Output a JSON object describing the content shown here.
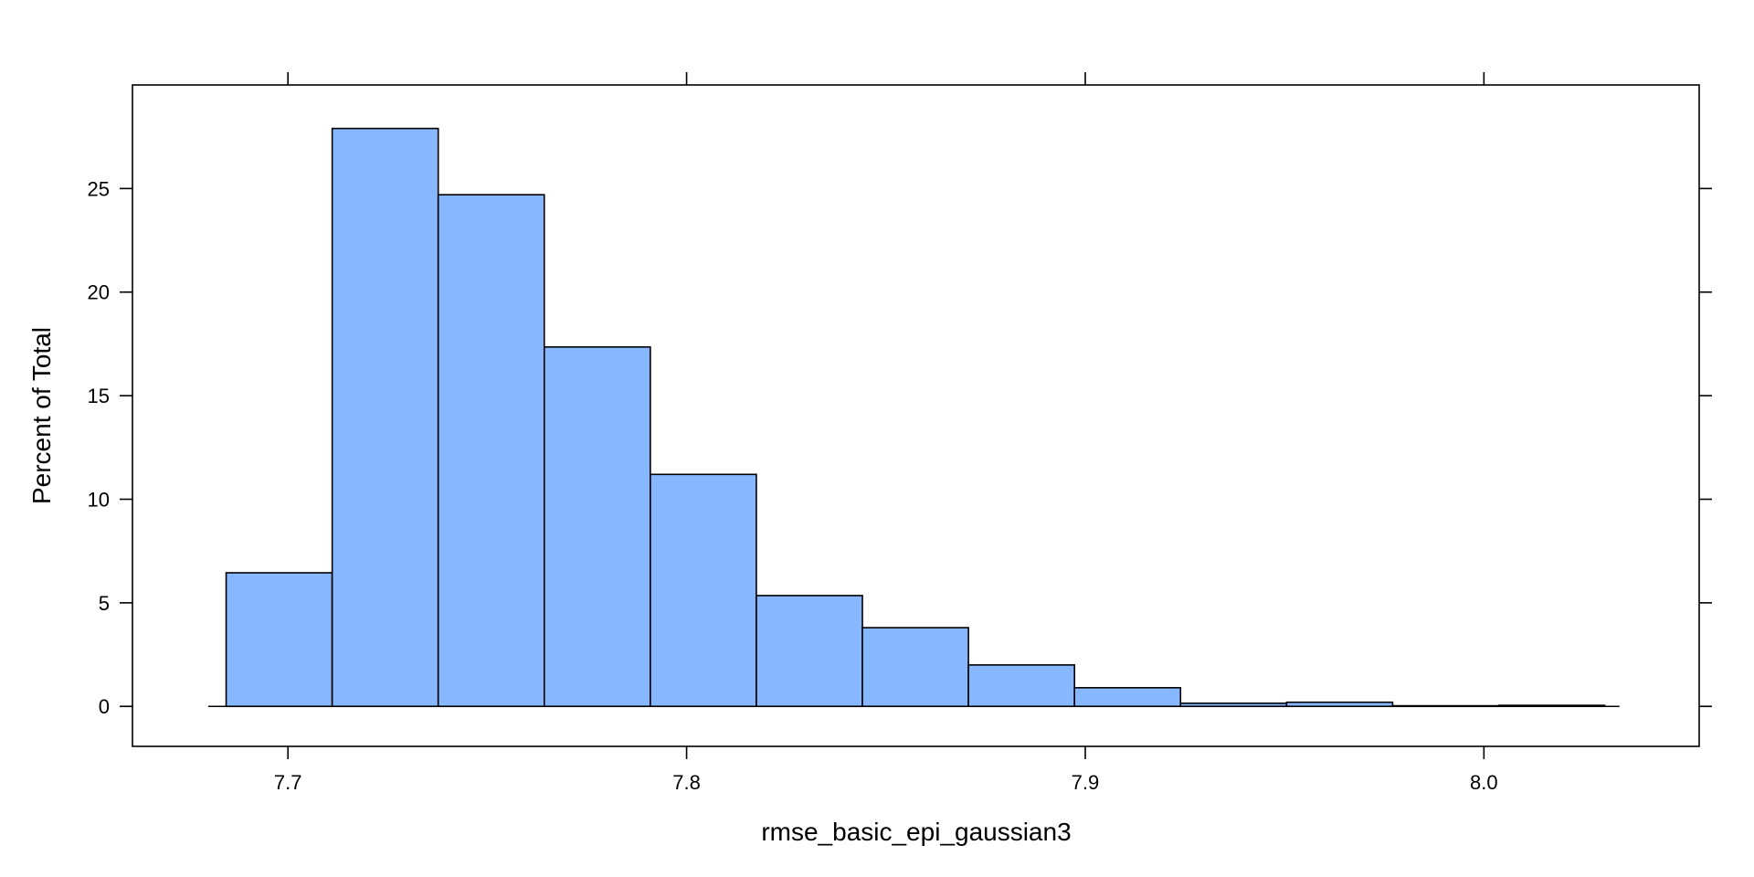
{
  "chart_data": {
    "type": "bar",
    "xlabel": "rmse_basic_epi_gaussian3",
    "ylabel": "Percent of Total",
    "xlim": [
      7.661,
      8.054
    ],
    "ylim": [
      -1.93,
      30.0
    ],
    "x_ticks": [
      7.7,
      7.8,
      7.9,
      8.0
    ],
    "x_tick_labels": [
      "7.7",
      "7.8",
      "7.9",
      "8.0"
    ],
    "y_ticks": [
      0,
      5,
      10,
      15,
      20,
      25
    ],
    "y_tick_labels": [
      "0",
      "5",
      "10",
      "15",
      "20",
      "25"
    ],
    "baseline_range": [
      7.68,
      8.034
    ],
    "bins": [
      {
        "x0": 7.6845,
        "x1": 7.7111,
        "value": 6.45
      },
      {
        "x0": 7.7111,
        "x1": 7.7377,
        "value": 27.9
      },
      {
        "x0": 7.7377,
        "x1": 7.7643,
        "value": 24.7
      },
      {
        "x0": 7.7643,
        "x1": 7.7909,
        "value": 17.35
      },
      {
        "x0": 7.7909,
        "x1": 7.8175,
        "value": 11.2
      },
      {
        "x0": 7.8175,
        "x1": 7.8441,
        "value": 5.35
      },
      {
        "x0": 7.8441,
        "x1": 7.8707,
        "value": 3.8
      },
      {
        "x0": 7.8707,
        "x1": 7.8973,
        "value": 2.0
      },
      {
        "x0": 7.8973,
        "x1": 7.9239,
        "value": 0.9
      },
      {
        "x0": 7.9239,
        "x1": 7.9505,
        "value": 0.15
      },
      {
        "x0": 7.9505,
        "x1": 7.9771,
        "value": 0.2
      },
      {
        "x0": 7.9771,
        "x1": 8.0037,
        "value": 0.03
      },
      {
        "x0": 8.0037,
        "x1": 8.0303,
        "value": 0.05
      }
    ],
    "bar_color": "#87b8ff",
    "grid": false,
    "legend": "none"
  }
}
